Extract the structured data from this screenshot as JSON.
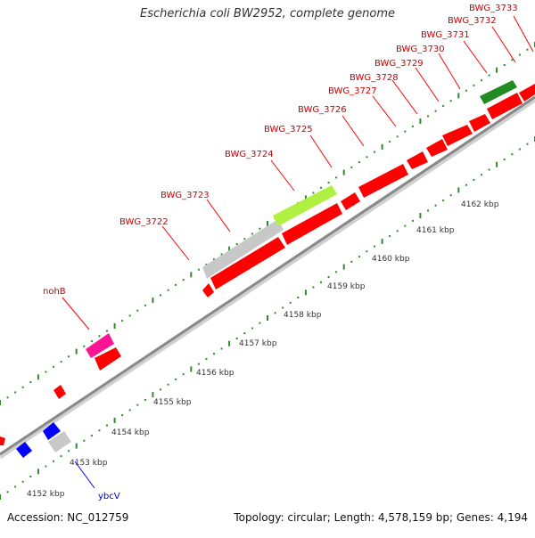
{
  "title": "Escherichia coli BW2952, complete genome",
  "footer": {
    "accession": "Accession: NC_012759",
    "summary": "Topology: circular; Length: 4,578,159 bp; Genes: 4,194"
  },
  "colors": {
    "forward_gene": "#ff0000",
    "reverse_gene": "#0000ff",
    "rna": "#ff1493",
    "other": "#c8c8c8",
    "highlight_lime": "#b0f040",
    "dark_green": "#228b22",
    "tick": "#2e8b2e",
    "backbone": "#888888"
  },
  "scale": {
    "unit": "kbp",
    "ticks": [
      "4152 kbp",
      "4153 kbp",
      "4154 kbp",
      "4155 kbp",
      "4156 kbp",
      "4157 kbp",
      "4158 kbp",
      "4159 kbp",
      "4160 kbp",
      "4161 kbp",
      "4162 kbp"
    ]
  },
  "gene_labels": [
    {
      "text": "BWG_3733",
      "color": "#cc0000"
    },
    {
      "text": "BWG_3732",
      "color": "#cc0000"
    },
    {
      "text": "BWG_3731",
      "color": "#cc0000"
    },
    {
      "text": "BWG_3730",
      "color": "#cc0000"
    },
    {
      "text": "BWG_3729",
      "color": "#cc0000"
    },
    {
      "text": "BWG_3728",
      "color": "#cc0000"
    },
    {
      "text": "BWG_3727",
      "color": "#cc0000"
    },
    {
      "text": "BWG_3726",
      "color": "#cc0000"
    },
    {
      "text": "BWG_3725",
      "color": "#cc0000"
    },
    {
      "text": "BWG_3724",
      "color": "#cc0000"
    },
    {
      "text": "BWG_3723",
      "color": "#cc0000"
    },
    {
      "text": "BWG_3722",
      "color": "#cc0000"
    },
    {
      "text": "nohB",
      "color": "#cc0000"
    },
    {
      "text": "ybcV",
      "color": "#0000cc"
    }
  ]
}
